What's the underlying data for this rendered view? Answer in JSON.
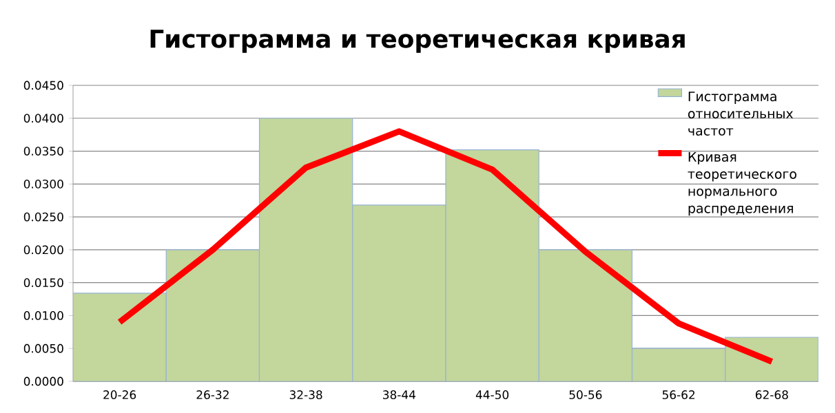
{
  "chart_data": {
    "type": "bar",
    "title": "Гистограмма и теоретическая кривая",
    "categories": [
      "20-26",
      "26-32",
      "32-38",
      "38-44",
      "44-50",
      "50-56",
      "56-62",
      "62-68"
    ],
    "series": [
      {
        "name": "Гистограмма относительных частот",
        "type": "bar",
        "color": "#c3d69b",
        "values": [
          0.0134,
          0.02,
          0.04,
          0.0268,
          0.0352,
          0.02,
          0.005,
          0.0067
        ]
      },
      {
        "name": "Кривая теоретического нормального распределения",
        "type": "line",
        "color": "#ff0000",
        "values": [
          0.009,
          0.02,
          0.0325,
          0.038,
          0.0322,
          0.0197,
          0.0088,
          0.003
        ]
      }
    ],
    "ylim": [
      0,
      0.045
    ],
    "yticks": [
      {
        "value": 0,
        "label": "0.0000"
      },
      {
        "value": 0.005,
        "label": "0.0050"
      },
      {
        "value": 0.01,
        "label": "0.0100"
      },
      {
        "value": 0.015,
        "label": "0.0150"
      },
      {
        "value": 0.02,
        "label": "0.0200"
      },
      {
        "value": 0.025,
        "label": "0.0250"
      },
      {
        "value": 0.03,
        "label": "0.0300"
      },
      {
        "value": 0.035,
        "label": "0.0350"
      },
      {
        "value": 0.04,
        "label": "0.0400"
      },
      {
        "value": 0.045,
        "label": "0.0450"
      }
    ],
    "grid": "y",
    "legend": "top right",
    "marker": "none",
    "line_style": "solid"
  }
}
